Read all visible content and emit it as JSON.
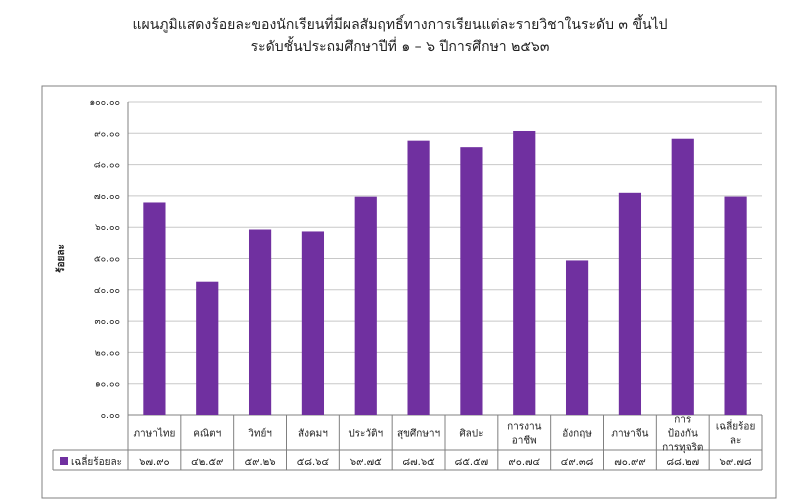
{
  "header": {
    "title_line1": "แผนภูมิแสดงร้อยละของนักเรียนที่มีผลสัมฤทธิ์ทางการเรียนแต่ละรายวิชาในระดับ ๓ ขึ้นไป",
    "title_line2": "ระดับชั้นประถมศึกษาปีที่ ๑ – ๖ ปีการศึกษา ๒๕๖๓"
  },
  "colors": {
    "bar": "#7030a0",
    "grid": "#c8c8c8",
    "border": "#808080"
  },
  "chart_data": {
    "type": "bar",
    "title": "แผนภูมิแสดงร้อยละของนักเรียนที่มีผลสัมฤทธิ์ทางการเรียนแต่ละรายวิชาในระดับ ๓ ขึ้นไป ระดับชั้นประถมศึกษาปีที่ ๑ – ๖ ปีการศึกษา ๒๕๖๓",
    "ylabel": "ร้อยละ",
    "xlabel": "",
    "ylim": [
      0,
      100
    ],
    "yticks": [
      0,
      10,
      20,
      30,
      40,
      50,
      60,
      70,
      80,
      90,
      100
    ],
    "ytick_labels": [
      "๐.๐๐",
      "๑๐.๐๐",
      "๒๐.๐๐",
      "๓๐.๐๐",
      "๔๐.๐๐",
      "๕๐.๐๐",
      "๖๐.๐๐",
      "๗๐.๐๐",
      "๘๐.๐๐",
      "๙๐.๐๐",
      "๑๐๐.๐๐"
    ],
    "grid": true,
    "legend_position": "bottom-left-table",
    "categories": [
      [
        "ภาษาไทย"
      ],
      [
        "คณิตฯ"
      ],
      [
        "วิทย์ฯ"
      ],
      [
        "สังคมฯ"
      ],
      [
        "ประวัติฯ"
      ],
      [
        "สุขศึกษาฯ"
      ],
      [
        "ศิลปะ"
      ],
      [
        "การงาน",
        "อาชีพ"
      ],
      [
        "อังกฤษ"
      ],
      [
        "ภาษาจีน"
      ],
      [
        "การ",
        "ป้องกัน",
        "การทุจริต"
      ],
      [
        "เฉลี่ยร้อย",
        "ละ"
      ]
    ],
    "series": [
      {
        "name": "เฉลี่ยร้อยละ",
        "values": [
          67.9,
          42.59,
          59.26,
          58.64,
          69.75,
          87.65,
          85.57,
          90.74,
          49.38,
          70.99,
          88.27,
          69.78
        ],
        "value_labels": [
          "๖๗.๙๐",
          "๔๒.๕๙",
          "๕๙.๒๖",
          "๕๘.๖๔",
          "๖๙.๗๕",
          "๘๗.๖๕",
          "๘๕.๕๗",
          "๙๐.๗๔",
          "๔๙.๓๘",
          "๗๐.๙๙",
          "๘๘.๒๗",
          "๖๙.๗๘"
        ]
      }
    ]
  }
}
